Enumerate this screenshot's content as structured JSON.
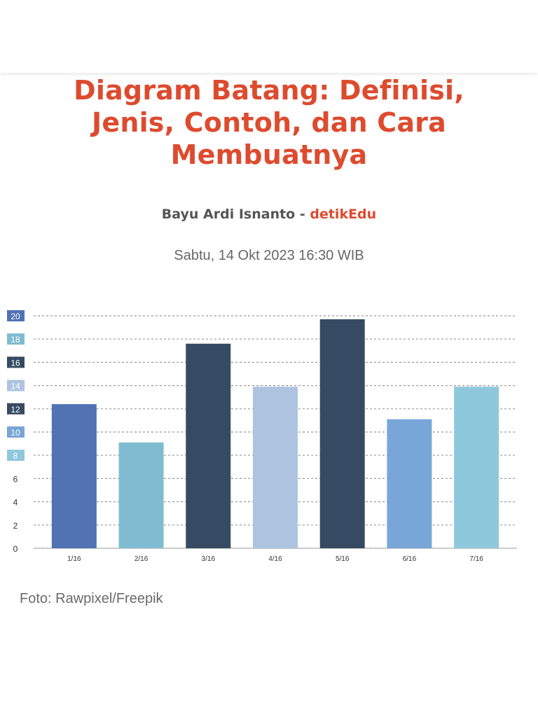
{
  "article": {
    "title": "Diagram Batang: Definisi, Jenis, Contoh, dan Cara Membuatnya",
    "author": "Bayu Ardi Isnanto",
    "separator": " - ",
    "source": "detikEdu",
    "timestamp": "Sabtu, 14 Okt 2023 16:30 WIB",
    "photo_caption": "Foto: Rawpixel/Freepik"
  },
  "colors": {
    "accent": "#dd4b2f",
    "byline_text": "#555555",
    "timestamp_text": "#666666"
  },
  "chart_data": {
    "type": "bar",
    "categories": [
      "1/16",
      "2/16",
      "3/16",
      "4/16",
      "5/16",
      "6/16",
      "7/16"
    ],
    "values": [
      12.4,
      9.1,
      17.6,
      13.9,
      19.7,
      11.1,
      13.9
    ],
    "bar_colors": [
      "#5173b3",
      "#80bcd1",
      "#364b63",
      "#adc3e0",
      "#364b63",
      "#78a6d8",
      "#8ec8dd"
    ],
    "yticks": [
      0,
      2,
      4,
      6,
      8,
      10,
      12,
      14,
      16,
      18,
      20
    ],
    "ytick_badges": {
      "8": "#8ec8dd",
      "10": "#78a6d8",
      "12": "#364b63",
      "14": "#adc3e0",
      "16": "#364b63",
      "18": "#80bcd1",
      "20": "#5173b3"
    },
    "ylim": [
      0,
      20
    ],
    "grid": true,
    "title": "",
    "xlabel": "",
    "ylabel": ""
  }
}
